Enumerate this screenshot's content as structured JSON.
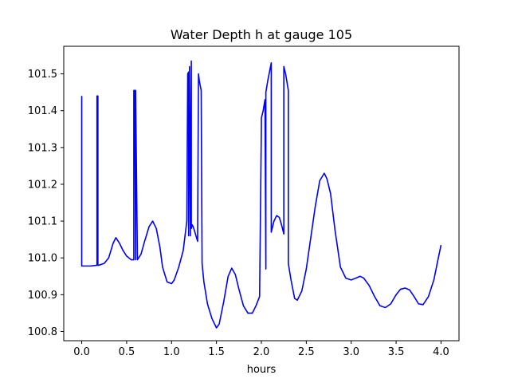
{
  "chart_data": {
    "type": "line",
    "title": "Water Depth h at gauge 105",
    "xlabel": "hours",
    "ylabel": "",
    "xlim": [
      -0.2,
      4.2
    ],
    "ylim": [
      100.775,
      101.575
    ],
    "xticks": [
      0.0,
      0.5,
      1.0,
      1.5,
      2.0,
      2.5,
      3.0,
      3.5,
      4.0
    ],
    "xtick_labels": [
      "0.0",
      "0.5",
      "1.0",
      "1.5",
      "2.0",
      "2.5",
      "3.0",
      "3.5",
      "4.0"
    ],
    "yticks": [
      100.8,
      100.9,
      101.0,
      101.1,
      101.2,
      101.3,
      101.4,
      101.5
    ],
    "ytick_labels": [
      "100.8",
      "100.9",
      "101.0",
      "101.1",
      "101.2",
      "101.3",
      "101.4",
      "101.5"
    ],
    "grid": false,
    "color": "#0000ff",
    "series": [
      {
        "x": [
          0.0,
          0.0,
          0.01,
          0.1,
          0.17,
          0.17,
          0.18,
          0.18,
          0.19,
          0.25,
          0.3,
          0.35,
          0.38,
          0.42,
          0.46,
          0.5,
          0.55,
          0.58,
          0.58,
          0.59,
          0.6,
          0.6,
          0.62,
          0.66,
          0.7,
          0.75,
          0.79,
          0.83,
          0.87,
          0.9,
          0.95,
          1.0,
          1.03,
          1.08,
          1.13,
          1.17,
          1.18,
          1.19,
          1.19,
          1.2,
          1.21,
          1.22,
          1.22,
          1.23,
          1.24,
          1.26,
          1.29,
          1.3,
          1.31,
          1.33,
          1.34,
          1.36,
          1.4,
          1.45,
          1.5,
          1.53,
          1.58,
          1.63,
          1.67,
          1.71,
          1.75,
          1.8,
          1.85,
          1.9,
          1.94,
          1.98,
          2.0,
          2.0,
          2.02,
          2.04,
          2.05,
          2.05,
          2.06,
          2.07,
          2.09,
          2.11,
          2.11,
          2.14,
          2.17,
          2.2,
          2.23,
          2.25,
          2.25,
          2.27,
          2.29,
          2.3,
          2.3,
          2.33,
          2.37,
          2.4,
          2.45,
          2.5,
          2.55,
          2.6,
          2.65,
          2.7,
          2.73,
          2.77,
          2.82,
          2.88,
          2.94,
          3.0,
          3.05,
          3.1,
          3.14,
          3.2,
          3.26,
          3.32,
          3.38,
          3.44,
          3.5,
          3.55,
          3.6,
          3.65,
          3.7,
          3.75,
          3.8,
          3.86,
          3.92,
          3.97,
          4.0
        ],
        "y": [
          101.44,
          100.978,
          100.978,
          100.978,
          100.98,
          101.44,
          101.44,
          100.98,
          100.98,
          100.985,
          101.0,
          101.04,
          101.055,
          101.04,
          101.02,
          101.005,
          100.995,
          100.995,
          101.455,
          101.455,
          100.995,
          101.455,
          100.995,
          101.01,
          101.045,
          101.085,
          101.1,
          101.08,
          101.03,
          100.975,
          100.935,
          100.93,
          100.94,
          100.975,
          101.02,
          101.1,
          101.5,
          101.505,
          101.06,
          101.52,
          101.06,
          101.535,
          101.08,
          101.09,
          101.085,
          101.07,
          101.045,
          101.5,
          101.48,
          101.455,
          100.985,
          100.935,
          100.875,
          100.835,
          100.81,
          100.82,
          100.88,
          100.95,
          100.972,
          100.955,
          100.915,
          100.87,
          100.85,
          100.85,
          100.87,
          100.895,
          101.36,
          101.38,
          101.4,
          101.43,
          100.97,
          101.45,
          101.465,
          101.48,
          101.505,
          101.53,
          101.07,
          101.1,
          101.115,
          101.11,
          101.085,
          101.065,
          101.52,
          101.5,
          101.47,
          101.455,
          100.985,
          100.94,
          100.89,
          100.885,
          100.91,
          100.97,
          101.055,
          101.14,
          101.21,
          101.23,
          101.215,
          101.175,
          101.075,
          100.975,
          100.945,
          100.94,
          100.945,
          100.95,
          100.945,
          100.925,
          100.895,
          100.87,
          100.865,
          100.875,
          100.9,
          100.915,
          100.918,
          100.913,
          100.895,
          100.875,
          100.873,
          100.895,
          100.94,
          101.0,
          101.035
        ]
      }
    ]
  }
}
